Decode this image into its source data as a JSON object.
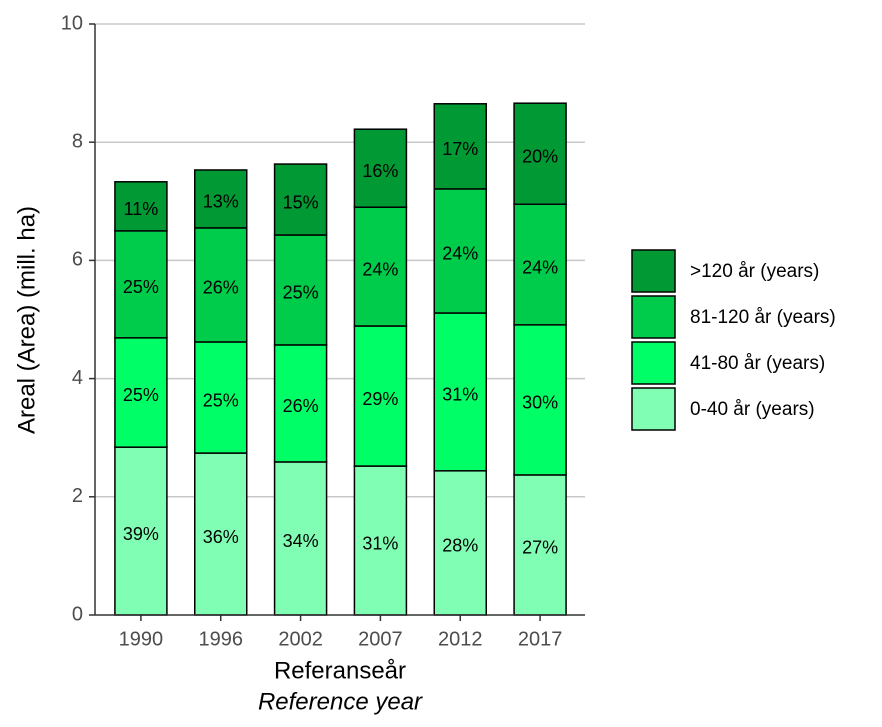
{
  "chart_data": {
    "type": "stacked_bar",
    "categories": [
      "1990",
      "1996",
      "2002",
      "2007",
      "2012",
      "2017"
    ],
    "series": [
      {
        "name": "0-40 år (years)",
        "color": "#80ffb4",
        "values": [
          2.84,
          2.74,
          2.59,
          2.52,
          2.44,
          2.37
        ],
        "labels": [
          "39%",
          "36%",
          "34%",
          "31%",
          "28%",
          "27%"
        ]
      },
      {
        "name": "41-80 år (years)",
        "color": "#00ff66",
        "values": [
          1.85,
          1.88,
          1.98,
          2.37,
          2.67,
          2.54
        ],
        "labels": [
          "25%",
          "25%",
          "26%",
          "29%",
          "31%",
          "30%"
        ]
      },
      {
        "name": "81-120 år (years)",
        "color": "#00cc4c",
        "values": [
          1.81,
          1.93,
          1.86,
          2.01,
          2.1,
          2.04
        ],
        "labels": [
          "25%",
          "26%",
          "25%",
          "24%",
          "24%",
          "24%"
        ]
      },
      {
        "name": ">120 år (years)",
        "color": "#009933",
        "values": [
          0.83,
          0.98,
          1.2,
          1.32,
          1.44,
          1.71
        ],
        "labels": [
          "11%",
          "13%",
          "15%",
          "16%",
          "17%",
          "20%"
        ]
      }
    ],
    "ylabel": "Areal (Area) (mill. ha)",
    "xlabel": "Referanseår",
    "xlabel_en": "Reference year",
    "ylim": [
      0,
      10
    ],
    "yticks": [
      0,
      2,
      4,
      6,
      8,
      10
    ],
    "grid": true,
    "legend": "right"
  }
}
